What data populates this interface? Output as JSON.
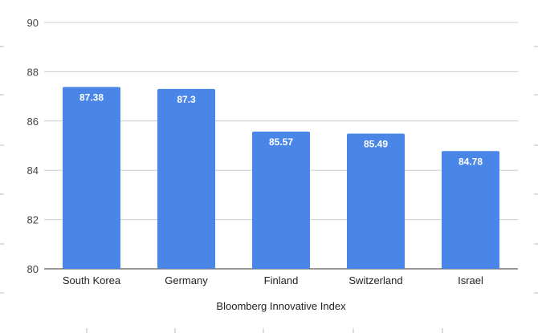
{
  "chart_data": {
    "type": "bar",
    "categories": [
      "South Korea",
      "Germany",
      "Finland",
      "Switzerland",
      "Israel"
    ],
    "values": [
      87.38,
      87.3,
      85.57,
      85.49,
      84.78
    ],
    "value_labels": [
      "87.38",
      "87.3",
      "85.57",
      "85.49",
      "84.78"
    ],
    "title": "",
    "xlabel": "Bloomberg Innovative Index",
    "ylabel": "",
    "ylim": [
      80,
      90
    ],
    "yticks": [
      80,
      82,
      84,
      86,
      88,
      90
    ],
    "grid": true,
    "legend": "none",
    "bar_color": "#4a86e8"
  }
}
